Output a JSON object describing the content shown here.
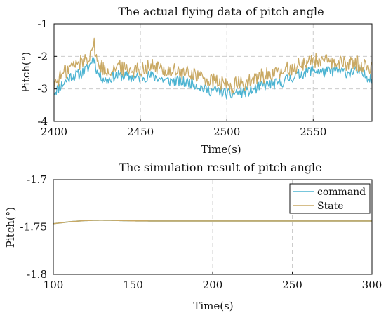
{
  "colors": {
    "command": "#4bb3d1",
    "state": "#c9a964",
    "grid": "#cccccc",
    "axis": "#111111"
  },
  "chart_data": [
    {
      "type": "line",
      "title": "The actual flying data of pitch angle",
      "xlabel": "Time(s)",
      "ylabel": "Pitch(°)",
      "xlim": [
        2400,
        2584
      ],
      "ylim": [
        -4,
        -1
      ],
      "xticks": [
        2400,
        2450,
        2500,
        2550
      ],
      "yticks": [
        -4,
        -3,
        -2,
        -1
      ],
      "xtick_labels": [
        "2400",
        "2450",
        "2500",
        "2550"
      ],
      "ytick_labels": [
        "-4",
        "-3",
        "-2",
        "-1"
      ],
      "grid": true,
      "legend": null,
      "series": [
        {
          "color_key": "command",
          "x": [
            2400,
            2405,
            2410,
            2415,
            2420,
            2423,
            2425,
            2430,
            2435,
            2440,
            2445,
            2450,
            2455,
            2460,
            2465,
            2470,
            2475,
            2480,
            2485,
            2490,
            2495,
            2500,
            2503,
            2505,
            2510,
            2515,
            2520,
            2525,
            2530,
            2535,
            2540,
            2545,
            2550,
            2555,
            2560,
            2565,
            2570,
            2575,
            2580,
            2584
          ],
          "y": [
            -3.1,
            -2.85,
            -2.6,
            -2.55,
            -2.35,
            -2.0,
            -2.5,
            -2.75,
            -2.6,
            -2.6,
            -2.65,
            -2.65,
            -2.6,
            -2.65,
            -2.75,
            -2.75,
            -2.8,
            -2.8,
            -2.95,
            -3.05,
            -3.05,
            -3.15,
            -3.2,
            -3.1,
            -3.1,
            -3.05,
            -2.9,
            -2.85,
            -2.85,
            -2.7,
            -2.6,
            -2.5,
            -2.4,
            -2.5,
            -2.45,
            -2.45,
            -2.5,
            -2.45,
            -2.6,
            -2.65
          ],
          "noise_amp": 0.17
        },
        {
          "color_key": "state",
          "x": [
            2400,
            2405,
            2410,
            2415,
            2420,
            2423,
            2425,
            2430,
            2435,
            2440,
            2445,
            2450,
            2455,
            2460,
            2465,
            2470,
            2475,
            2480,
            2485,
            2490,
            2495,
            2500,
            2503,
            2505,
            2510,
            2515,
            2520,
            2525,
            2530,
            2535,
            2540,
            2545,
            2550,
            2555,
            2560,
            2565,
            2570,
            2575,
            2580,
            2584
          ],
          "y": [
            -2.85,
            -2.55,
            -2.3,
            -2.2,
            -2.0,
            -1.6,
            -2.2,
            -2.45,
            -2.35,
            -2.35,
            -2.4,
            -2.4,
            -2.3,
            -2.35,
            -2.45,
            -2.45,
            -2.55,
            -2.5,
            -2.65,
            -2.75,
            -2.8,
            -2.9,
            -2.95,
            -2.85,
            -2.85,
            -2.75,
            -2.6,
            -2.55,
            -2.55,
            -2.4,
            -2.3,
            -2.2,
            -2.1,
            -2.15,
            -2.2,
            -2.2,
            -2.2,
            -2.2,
            -2.3,
            -2.4
          ],
          "noise_amp": 0.24
        }
      ]
    },
    {
      "type": "line",
      "title": "The simulation result of pitch angle",
      "xlabel": "Time(s)",
      "ylabel": "Pitch(°)",
      "xlim": [
        100,
        300
      ],
      "ylim": [
        -1.8,
        -1.7
      ],
      "xticks": [
        100,
        150,
        200,
        250,
        300
      ],
      "yticks": [
        -1.8,
        -1.75,
        -1.7
      ],
      "xtick_labels": [
        "100",
        "150",
        "200",
        "250",
        "300"
      ],
      "ytick_labels": [
        "-1.8",
        "-1.75",
        "-1.7"
      ],
      "grid": true,
      "legend": "top-right",
      "series": [
        {
          "name": "command",
          "color_key": "command",
          "x": [
            100,
            110,
            120,
            130,
            140,
            150,
            160,
            180,
            200,
            250,
            300
          ],
          "y": [
            -1.7465,
            -1.7445,
            -1.7432,
            -1.7428,
            -1.7431,
            -1.7435,
            -1.7436,
            -1.7436,
            -1.7436,
            -1.7436,
            -1.7436
          ]
        },
        {
          "name": "State",
          "color_key": "state",
          "x": [
            100,
            110,
            120,
            130,
            140,
            150,
            160,
            180,
            200,
            250,
            300
          ],
          "y": [
            -1.7465,
            -1.7445,
            -1.7432,
            -1.7428,
            -1.7431,
            -1.7435,
            -1.7436,
            -1.7436,
            -1.7436,
            -1.7436,
            -1.7436
          ]
        }
      ]
    }
  ]
}
